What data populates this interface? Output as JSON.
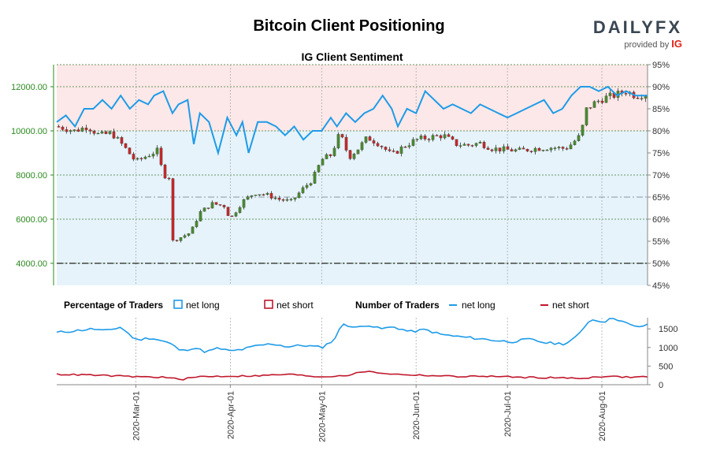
{
  "header": {
    "title": "Bitcoin Client Positioning",
    "subtitle": "IG Client Sentiment",
    "brand": "DAILYFX",
    "brand_sub": "provided by",
    "brand_ig": "IG"
  },
  "legend": {
    "percentage_title": "Percentage of Traders",
    "number_title": "Number of Traders",
    "net_long": "net long",
    "net_short": "net short"
  },
  "colors": {
    "long": "#1e9be8",
    "short": "#c0182d",
    "bull": "#4a8a2e",
    "bear": "#c62828",
    "long_zone": "#e6f3fb",
    "short_zone": "#fce8e8",
    "price_axis": "#2b8a1e"
  },
  "chart_data": [
    {
      "type": "candlestick",
      "title": "IG Client Sentiment",
      "price_axis": {
        "ylim": [
          3000,
          13000
        ],
        "ticks": [
          "4000.00",
          "6000.00",
          "8000.00",
          "10000.00",
          "12000.00"
        ]
      },
      "percent_axis": {
        "ylim": [
          45,
          95
        ],
        "ticks": [
          "45%",
          "50%",
          "55%",
          "60%",
          "65%",
          "70%",
          "75%",
          "80%",
          "85%",
          "90%",
          "95%"
        ]
      },
      "reference_lines": [
        {
          "axis": "percent",
          "value": 50,
          "style": "dash-dot"
        },
        {
          "axis": "percent",
          "value": 65,
          "style": "dash-dot"
        }
      ],
      "x_range": [
        "2020-02-04",
        "2020-08-16"
      ],
      "x_ticks": [
        "2020-Mar-01",
        "2020-Apr-01",
        "2020-May-01",
        "2020-Jun-01",
        "2020-Jul-01",
        "2020-Aug-01"
      ],
      "price_close": [
        [
          "2020-02-04",
          10200
        ],
        [
          "2020-02-10",
          10000
        ],
        [
          "2020-02-14",
          10200
        ],
        [
          "2020-02-18",
          9800
        ],
        [
          "2020-02-22",
          9900
        ],
        [
          "2020-02-26",
          9300
        ],
        [
          "2020-03-01",
          8600
        ],
        [
          "2020-03-05",
          8900
        ],
        [
          "2020-03-08",
          9100
        ],
        [
          "2020-03-10",
          8000
        ],
        [
          "2020-03-12",
          7900
        ],
        [
          "2020-03-13",
          5000
        ],
        [
          "2020-03-16",
          5200
        ],
        [
          "2020-03-19",
          5400
        ],
        [
          "2020-03-22",
          6300
        ],
        [
          "2020-03-26",
          6700
        ],
        [
          "2020-03-30",
          6600
        ],
        [
          "2020-04-01",
          6000
        ],
        [
          "2020-04-05",
          6800
        ],
        [
          "2020-04-09",
          7200
        ],
        [
          "2020-04-13",
          7100
        ],
        [
          "2020-04-17",
          6900
        ],
        [
          "2020-04-21",
          6800
        ],
        [
          "2020-04-25",
          7400
        ],
        [
          "2020-04-28",
          7800
        ],
        [
          "2020-05-01",
          8700
        ],
        [
          "2020-05-04",
          8900
        ],
        [
          "2020-05-07",
          9900
        ],
        [
          "2020-05-10",
          8800
        ],
        [
          "2020-05-13",
          9200
        ],
        [
          "2020-05-16",
          9700
        ],
        [
          "2020-05-20",
          9400
        ],
        [
          "2020-05-24",
          8900
        ],
        [
          "2020-05-28",
          9300
        ],
        [
          "2020-06-01",
          9600
        ],
        [
          "2020-06-05",
          9700
        ],
        [
          "2020-06-10",
          9800
        ],
        [
          "2020-06-14",
          9400
        ],
        [
          "2020-06-18",
          9350
        ],
        [
          "2020-06-22",
          9450
        ],
        [
          "2020-06-26",
          9200
        ],
        [
          "2020-06-30",
          9150
        ],
        [
          "2020-07-05",
          9100
        ],
        [
          "2020-07-10",
          9200
        ],
        [
          "2020-07-15",
          9250
        ],
        [
          "2020-07-20",
          9200
        ],
        [
          "2020-07-22",
          9400
        ],
        [
          "2020-07-25",
          9800
        ],
        [
          "2020-07-27",
          11000
        ],
        [
          "2020-07-30",
          11300
        ],
        [
          "2020-08-02",
          11500
        ],
        [
          "2020-08-05",
          11600
        ],
        [
          "2020-08-09",
          11800
        ],
        [
          "2020-08-12",
          11600
        ],
        [
          "2020-08-16",
          11700
        ]
      ],
      "percent_net_long": [
        [
          "2020-02-04",
          82
        ],
        [
          "2020-02-07",
          83.5
        ],
        [
          "2020-02-10",
          81
        ],
        [
          "2020-02-13",
          85
        ],
        [
          "2020-02-16",
          85
        ],
        [
          "2020-02-19",
          87
        ],
        [
          "2020-02-22",
          85
        ],
        [
          "2020-02-25",
          88
        ],
        [
          "2020-02-28",
          85
        ],
        [
          "2020-03-02",
          87
        ],
        [
          "2020-03-05",
          86
        ],
        [
          "2020-03-07",
          88
        ],
        [
          "2020-03-10",
          89
        ],
        [
          "2020-03-13",
          84
        ],
        [
          "2020-03-15",
          86
        ],
        [
          "2020-03-18",
          87
        ],
        [
          "2020-03-20",
          77
        ],
        [
          "2020-03-22",
          84
        ],
        [
          "2020-03-25",
          82
        ],
        [
          "2020-03-28",
          75
        ],
        [
          "2020-03-31",
          83
        ],
        [
          "2020-04-03",
          79
        ],
        [
          "2020-04-05",
          82
        ],
        [
          "2020-04-07",
          75
        ],
        [
          "2020-04-10",
          82
        ],
        [
          "2020-04-13",
          82
        ],
        [
          "2020-04-16",
          81
        ],
        [
          "2020-04-19",
          79
        ],
        [
          "2020-04-22",
          81
        ],
        [
          "2020-04-25",
          78
        ],
        [
          "2020-04-28",
          80
        ],
        [
          "2020-05-01",
          80
        ],
        [
          "2020-05-04",
          83
        ],
        [
          "2020-05-06",
          81
        ],
        [
          "2020-05-09",
          84
        ],
        [
          "2020-05-12",
          82
        ],
        [
          "2020-05-15",
          84
        ],
        [
          "2020-05-18",
          85
        ],
        [
          "2020-05-21",
          88
        ],
        [
          "2020-05-24",
          85
        ],
        [
          "2020-05-26",
          81
        ],
        [
          "2020-05-29",
          85
        ],
        [
          "2020-06-01",
          84
        ],
        [
          "2020-06-04",
          89
        ],
        [
          "2020-06-07",
          87
        ],
        [
          "2020-06-10",
          85
        ],
        [
          "2020-06-13",
          86
        ],
        [
          "2020-06-16",
          85
        ],
        [
          "2020-06-19",
          84
        ],
        [
          "2020-06-22",
          86
        ],
        [
          "2020-06-25",
          85
        ],
        [
          "2020-06-28",
          84
        ],
        [
          "2020-07-01",
          83
        ],
        [
          "2020-07-04",
          84
        ],
        [
          "2020-07-07",
          85
        ],
        [
          "2020-07-10",
          86
        ],
        [
          "2020-07-13",
          87
        ],
        [
          "2020-07-16",
          84
        ],
        [
          "2020-07-19",
          85
        ],
        [
          "2020-07-22",
          88
        ],
        [
          "2020-07-25",
          90
        ],
        [
          "2020-07-28",
          90
        ],
        [
          "2020-07-31",
          89
        ],
        [
          "2020-08-03",
          90
        ],
        [
          "2020-08-06",
          88
        ],
        [
          "2020-08-09",
          89
        ],
        [
          "2020-08-12",
          88
        ],
        [
          "2020-08-16",
          88
        ]
      ],
      "series": [
        {
          "name": "net long"
        },
        {
          "name": "net short"
        }
      ]
    },
    {
      "type": "line",
      "y_axis": {
        "ylim": [
          0,
          1800
        ],
        "ticks": [
          "0",
          "500",
          "1000",
          "1500"
        ]
      },
      "series": [
        {
          "name": "net long",
          "values": [
            [
              "2020-02-04",
              1400
            ],
            [
              "2020-02-10",
              1450
            ],
            [
              "2020-02-16",
              1500
            ],
            [
              "2020-02-20",
              1440
            ],
            [
              "2020-02-25",
              1550
            ],
            [
              "2020-03-01",
              1200
            ],
            [
              "2020-03-06",
              1260
            ],
            [
              "2020-03-12",
              1120
            ],
            [
              "2020-03-16",
              900
            ],
            [
              "2020-03-20",
              1000
            ],
            [
              "2020-03-24",
              880
            ],
            [
              "2020-03-28",
              980
            ],
            [
              "2020-04-01",
              900
            ],
            [
              "2020-04-05",
              950
            ],
            [
              "2020-04-10",
              1050
            ],
            [
              "2020-04-15",
              1100
            ],
            [
              "2020-04-20",
              1020
            ],
            [
              "2020-04-25",
              1060
            ],
            [
              "2020-05-01",
              1000
            ],
            [
              "2020-05-05",
              1200
            ],
            [
              "2020-05-08",
              1650
            ],
            [
              "2020-05-12",
              1520
            ],
            [
              "2020-05-16",
              1620
            ],
            [
              "2020-05-20",
              1500
            ],
            [
              "2020-05-25",
              1550
            ],
            [
              "2020-05-30",
              1420
            ],
            [
              "2020-06-04",
              1480
            ],
            [
              "2020-06-09",
              1350
            ],
            [
              "2020-06-14",
              1300
            ],
            [
              "2020-06-20",
              1250
            ],
            [
              "2020-06-26",
              1200
            ],
            [
              "2020-07-02",
              1150
            ],
            [
              "2020-07-08",
              1220
            ],
            [
              "2020-07-14",
              1120
            ],
            [
              "2020-07-20",
              1100
            ],
            [
              "2020-07-24",
              1300
            ],
            [
              "2020-07-28",
              1750
            ],
            [
              "2020-08-02",
              1700
            ],
            [
              "2020-08-05",
              1800
            ],
            [
              "2020-08-09",
              1650
            ],
            [
              "2020-08-12",
              1550
            ],
            [
              "2020-08-16",
              1600
            ]
          ]
        },
        {
          "name": "net short",
          "values": [
            [
              "2020-02-04",
              280
            ],
            [
              "2020-02-15",
              260
            ],
            [
              "2020-02-28",
              220
            ],
            [
              "2020-03-10",
              200
            ],
            [
              "2020-03-16",
              140
            ],
            [
              "2020-03-22",
              220
            ],
            [
              "2020-04-01",
              230
            ],
            [
              "2020-04-10",
              240
            ],
            [
              "2020-04-20",
              280
            ],
            [
              "2020-05-01",
              210
            ],
            [
              "2020-05-10",
              260
            ],
            [
              "2020-05-15",
              360
            ],
            [
              "2020-05-25",
              280
            ],
            [
              "2020-06-05",
              250
            ],
            [
              "2020-06-15",
              220
            ],
            [
              "2020-06-25",
              230
            ],
            [
              "2020-07-05",
              200
            ],
            [
              "2020-07-15",
              190
            ],
            [
              "2020-07-25",
              170
            ],
            [
              "2020-08-02",
              230
            ],
            [
              "2020-08-10",
              200
            ],
            [
              "2020-08-16",
              220
            ]
          ]
        }
      ]
    }
  ]
}
